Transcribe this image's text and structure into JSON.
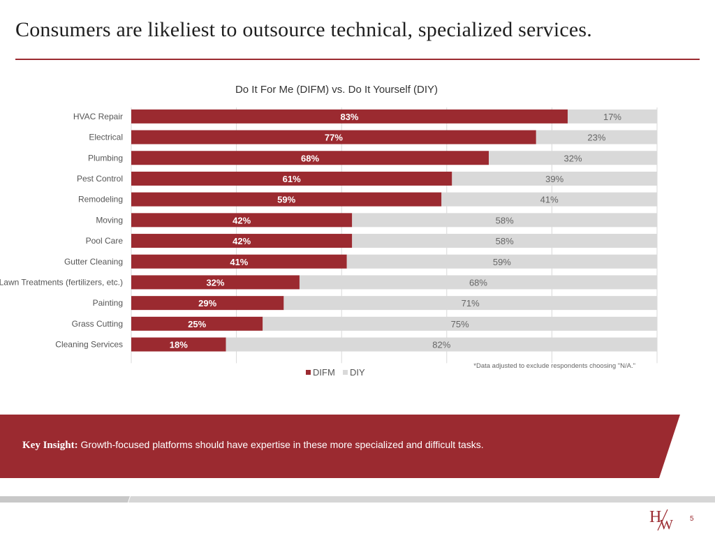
{
  "slide": {
    "title": "Consumers are likeliest to outsource technical, specialized services.",
    "page_number": "5",
    "footnote": "*Data adjusted to exclude respondents choosing \"N/A.\"",
    "insight_label": "Key Insight:",
    "insight_text": "Growth-focused platforms should have expertise in these more specialized and difficult tasks."
  },
  "colors": {
    "accent": "#9b2a30",
    "difm": "#9b2a30",
    "diy": "#d9d9d9",
    "grid": "#d9d9d9",
    "footer_strip": "#d0d0d0"
  },
  "chart_data": {
    "type": "bar",
    "orientation": "horizontal",
    "stacked": true,
    "title": "Do It For Me (DIFM) vs. Do It Yourself (DIY)",
    "categories": [
      "HVAC Repair",
      "Electrical",
      "Plumbing",
      "Pest Control",
      "Remodeling",
      "Moving",
      "Pool Care",
      "Gutter Cleaning",
      "Lawn Treatments (fertilizers, etc.)",
      "Painting",
      "Grass Cutting",
      "Cleaning Services"
    ],
    "series": [
      {
        "name": "DIFM",
        "values": [
          83,
          77,
          68,
          61,
          59,
          42,
          42,
          41,
          32,
          29,
          25,
          18
        ]
      },
      {
        "name": "DIY",
        "values": [
          17,
          23,
          32,
          39,
          41,
          58,
          58,
          59,
          68,
          71,
          75,
          82
        ]
      }
    ],
    "xlim": [
      0,
      100
    ],
    "value_suffix": "%",
    "legend": "bottom-center",
    "grid": true,
    "xlabel": "",
    "ylabel": ""
  }
}
